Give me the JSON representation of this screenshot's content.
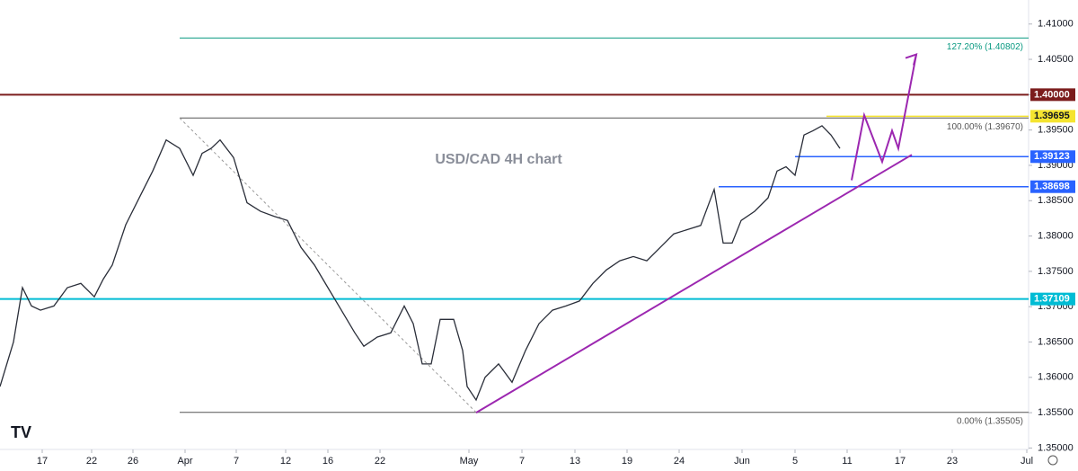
{
  "chart_data": {
    "type": "line",
    "title": "USD/CAD 4H chart",
    "x": [
      0,
      15,
      25,
      35,
      45,
      60,
      75,
      90,
      105,
      115,
      125,
      140,
      155,
      170,
      185,
      200,
      215,
      225,
      235,
      245,
      260,
      275,
      290,
      305,
      320,
      335,
      350,
      365,
      380,
      395,
      405,
      420,
      435,
      450,
      460,
      470,
      480,
      490,
      505,
      515,
      520,
      530,
      540,
      555,
      570,
      585,
      600,
      615,
      630,
      645,
      660,
      675,
      690,
      705,
      720,
      735,
      750,
      765,
      780,
      795,
      805,
      815,
      825,
      840,
      855,
      865,
      875,
      885,
      895,
      905,
      915,
      925,
      935
    ],
    "values": [
      1.3587,
      1.365,
      1.3727,
      1.3701,
      1.3695,
      1.3701,
      1.3727,
      1.3733,
      1.3714,
      1.3739,
      1.3759,
      1.3816,
      1.3854,
      1.3892,
      1.3936,
      1.3924,
      1.3886,
      1.3917,
      1.3924,
      1.3936,
      1.3911,
      1.3847,
      1.3835,
      1.3828,
      1.3822,
      1.3784,
      1.3759,
      1.3727,
      1.3695,
      1.3663,
      1.3644,
      1.3657,
      1.3663,
      1.3701,
      1.3676,
      1.3619,
      1.3619,
      1.3682,
      1.3682,
      1.3638,
      1.3587,
      1.3568,
      1.36,
      1.3619,
      1.3593,
      1.3638,
      1.3676,
      1.3695,
      1.3701,
      1.3708,
      1.3733,
      1.3752,
      1.3765,
      1.3771,
      1.3765,
      1.3784,
      1.3803,
      1.3809,
      1.3815,
      1.3866,
      1.379,
      1.379,
      1.3822,
      1.3835,
      1.3854,
      1.3892,
      1.3898,
      1.3886,
      1.3943,
      1.3949,
      1.3956,
      1.3943,
      1.3924
    ],
    "color": "#2a2e39",
    "xlim": [
      0,
      1145
    ],
    "xticks": [
      {
        "value": 47,
        "label": "17"
      },
      {
        "value": 102,
        "label": "22"
      },
      {
        "value": 148,
        "label": "26"
      },
      {
        "value": 206,
        "label": "Apr"
      },
      {
        "value": 263,
        "label": "7"
      },
      {
        "value": 318,
        "label": "12"
      },
      {
        "value": 365,
        "label": "16"
      },
      {
        "value": 423,
        "label": "22"
      },
      {
        "value": 522,
        "label": "May"
      },
      {
        "value": 581,
        "label": "7"
      },
      {
        "value": 640,
        "label": "13"
      },
      {
        "value": 698,
        "label": "19"
      },
      {
        "value": 756,
        "label": "24"
      },
      {
        "value": 826,
        "label": "Jun"
      },
      {
        "value": 885,
        "label": "5"
      },
      {
        "value": 943,
        "label": "11"
      },
      {
        "value": 1002,
        "label": "17"
      },
      {
        "value": 1060,
        "label": "23"
      },
      {
        "value": 1143,
        "label": "Jul"
      }
    ],
    "ylim": [
      1.3498,
      1.4134
    ],
    "yticks": [
      {
        "value": 1.35,
        "label": "1.35000"
      },
      {
        "value": 1.355,
        "label": "1.35500"
      },
      {
        "value": 1.36,
        "label": "1.36000"
      },
      {
        "value": 1.365,
        "label": "1.36500"
      },
      {
        "value": 1.37,
        "label": "1.37000"
      },
      {
        "value": 1.375,
        "label": "1.37500"
      },
      {
        "value": 1.38,
        "label": "1.38000"
      },
      {
        "value": 1.385,
        "label": "1.38500"
      },
      {
        "value": 1.39,
        "label": "1.39000"
      },
      {
        "value": 1.395,
        "label": "1.39500"
      },
      {
        "value": 1.4,
        "label": "1.40000"
      },
      {
        "value": 1.405,
        "label": "1.40500"
      },
      {
        "value": 1.41,
        "label": "1.41000"
      }
    ],
    "levels": [
      {
        "value": 1.4,
        "label": "1.40000",
        "color": "#7b1c1c",
        "from": 0
      },
      {
        "value": 1.39695,
        "label": "1.39695",
        "color": "#f5e430",
        "from": 920
      },
      {
        "value": 1.39123,
        "label": "1.39123",
        "color": "#2962ff",
        "from": 885
      },
      {
        "value": 1.38698,
        "label": "1.38698",
        "color": "#2962ff",
        "from": 800
      },
      {
        "value": 1.37109,
        "label": "1.37109",
        "color": "#00bcd4",
        "from": 0
      }
    ],
    "fib": [
      {
        "value": 1.40802,
        "label": "127.20% (1.40802)",
        "color": "#089981"
      },
      {
        "value": 1.3967,
        "label": "100.00% (1.39670)",
        "color": "#555555"
      },
      {
        "value": 1.35505,
        "label": "0.00% (1.35505)",
        "color": "#555555"
      }
    ],
    "fib_from": 200,
    "trendline": {
      "x": [
        530,
        1015
      ],
      "values": [
        1.355,
        1.3915
      ],
      "color": "#9c27b0"
    },
    "projection": {
      "x": [
        948,
        962,
        982,
        993,
        1000,
        1020
      ],
      "values": [
        1.3879,
        1.3971,
        1.3905,
        1.3949,
        1.3924,
        1.4057
      ],
      "color": "#9c27b0"
    }
  }
}
